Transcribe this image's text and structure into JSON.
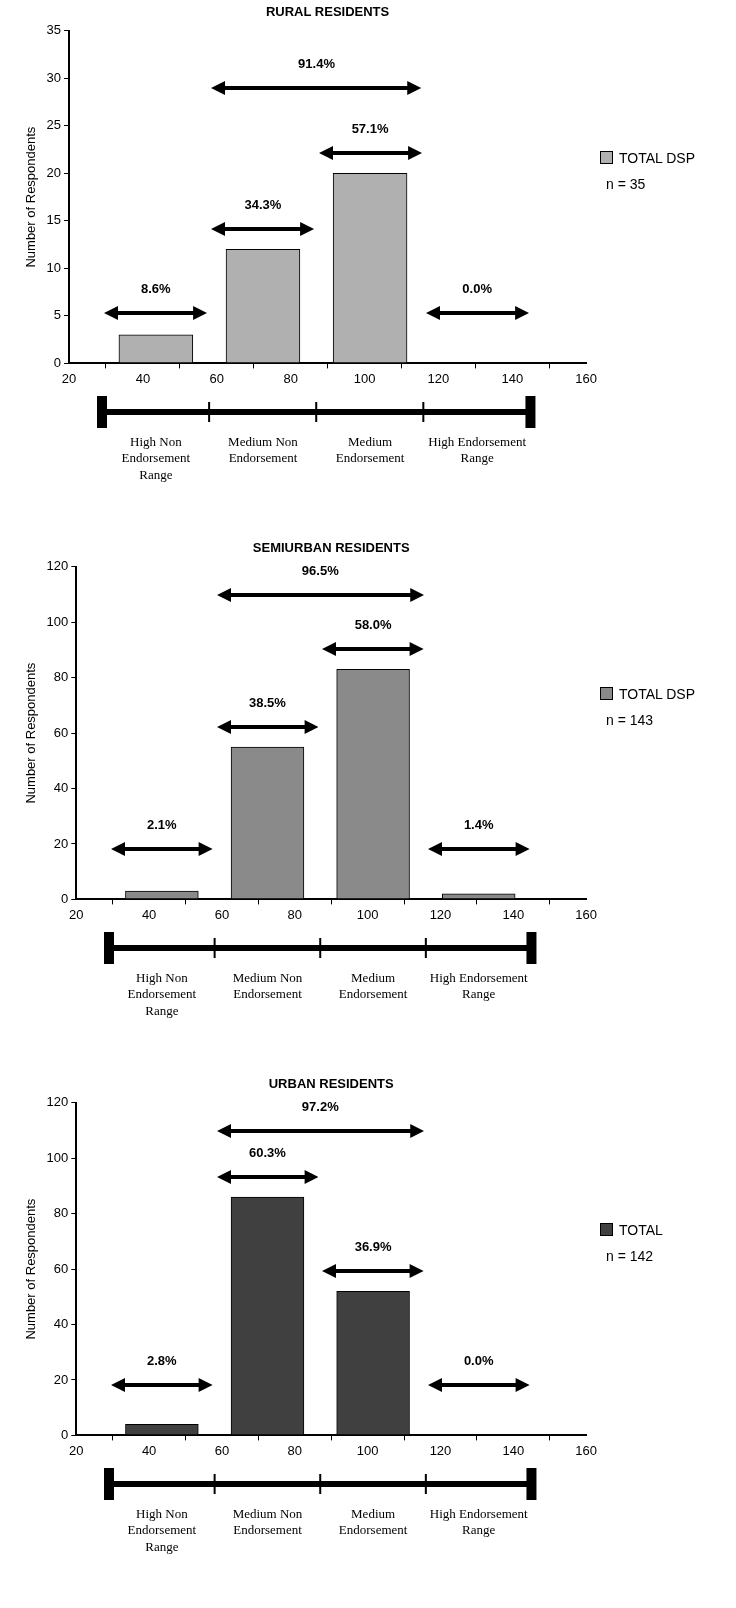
{
  "chart_data": [
    {
      "type": "histogram",
      "title": "RURAL RESIDENTS",
      "ylabel": "Number of Respondents",
      "bins": [
        29,
        58,
        87,
        116,
        145
      ],
      "series": [
        {
          "name": "TOTAL DSP",
          "color": "#b0b0b0",
          "values": [
            3,
            12,
            20,
            0
          ]
        }
      ],
      "xlim": [
        20,
        160
      ],
      "xticks": [
        20,
        40,
        60,
        80,
        100,
        120,
        140,
        160
      ],
      "ylim": [
        0,
        35
      ],
      "yticks": [
        0,
        5,
        10,
        15,
        20,
        25,
        30,
        35
      ],
      "grid": false,
      "legend": "right",
      "annotations": [
        "8.6%",
        "34.3%",
        "57.1%",
        "0.0%",
        "91.4%",
        "High Non Endorsement Range",
        "Medium Non Endorsement",
        "Medium Endorsement",
        "High Endorsement Range",
        "n = 35"
      ]
    },
    {
      "type": "histogram",
      "title": "SEMIURBAN RESIDENTS",
      "ylabel": "Number of Respondents",
      "bins": [
        29,
        58,
        87,
        116,
        145
      ],
      "series": [
        {
          "name": "TOTAL DSP",
          "color": "#8a8a8a",
          "values": [
            3,
            55,
            83,
            2
          ]
        }
      ],
      "xlim": [
        20,
        160
      ],
      "xticks": [
        20,
        40,
        60,
        80,
        100,
        120,
        140,
        160
      ],
      "ylim": [
        0,
        120
      ],
      "yticks": [
        0,
        20,
        40,
        60,
        80,
        100,
        120
      ],
      "grid": false,
      "legend": "right",
      "annotations": [
        "2.1%",
        "38.5%",
        "58.0%",
        "1.4%",
        "96.5%",
        "High Non Endorsement Range",
        "Medium Non Endorsement",
        "Medium Endorsement",
        "High Endorsement Range",
        "n = 143"
      ]
    },
    {
      "type": "histogram",
      "title": "URBAN RESIDENTS",
      "ylabel": "Number of Respondents",
      "bins": [
        29,
        58,
        87,
        116,
        145
      ],
      "series": [
        {
          "name": "TOTAL",
          "color": "#404040",
          "values": [
            4,
            86,
            52,
            0
          ]
        }
      ],
      "xlim": [
        20,
        160
      ],
      "xticks": [
        20,
        40,
        60,
        80,
        100,
        120,
        140,
        160
      ],
      "ylim": [
        0,
        120
      ],
      "yticks": [
        0,
        20,
        40,
        60,
        80,
        100,
        120
      ],
      "grid": false,
      "legend": "right",
      "annotations": [
        "2.8%",
        "60.3%",
        "36.9%",
        "0.0%",
        "97.2%",
        "High Non Endorsement Range",
        "Medium Non Endorsement",
        "Medium Endorsement",
        "High Endorsement Range",
        "n = 142"
      ]
    }
  ]
}
